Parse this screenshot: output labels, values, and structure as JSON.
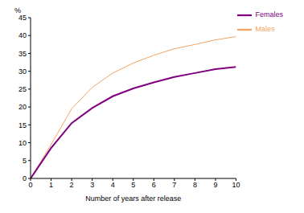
{
  "chart_data": {
    "type": "line",
    "x_label": "Number of years after release",
    "y_label": "%",
    "x": [
      0,
      1,
      2,
      3,
      4,
      5,
      6,
      7,
      8,
      9,
      10
    ],
    "series": [
      {
        "name": "Males",
        "color": "#f4a460",
        "values": [
          0,
          9.5,
          19.5,
          25.5,
          29.5,
          32.3,
          34.5,
          36.3,
          37.5,
          38.8,
          39.7
        ]
      },
      {
        "name": "Females",
        "color": "#800080",
        "values": [
          0,
          8.5,
          15.5,
          19.7,
          23,
          25.2,
          26.9,
          28.4,
          29.5,
          30.6,
          31.2
        ]
      }
    ],
    "xlim": [
      0,
      10
    ],
    "xticks": [
      0,
      1,
      2,
      3,
      4,
      5,
      6,
      7,
      8,
      9,
      10
    ],
    "ylim": [
      0,
      45
    ],
    "yticks": [
      0,
      5,
      10,
      15,
      20,
      25,
      30,
      35,
      40,
      45
    ],
    "grid": false,
    "legend": "upper right"
  }
}
